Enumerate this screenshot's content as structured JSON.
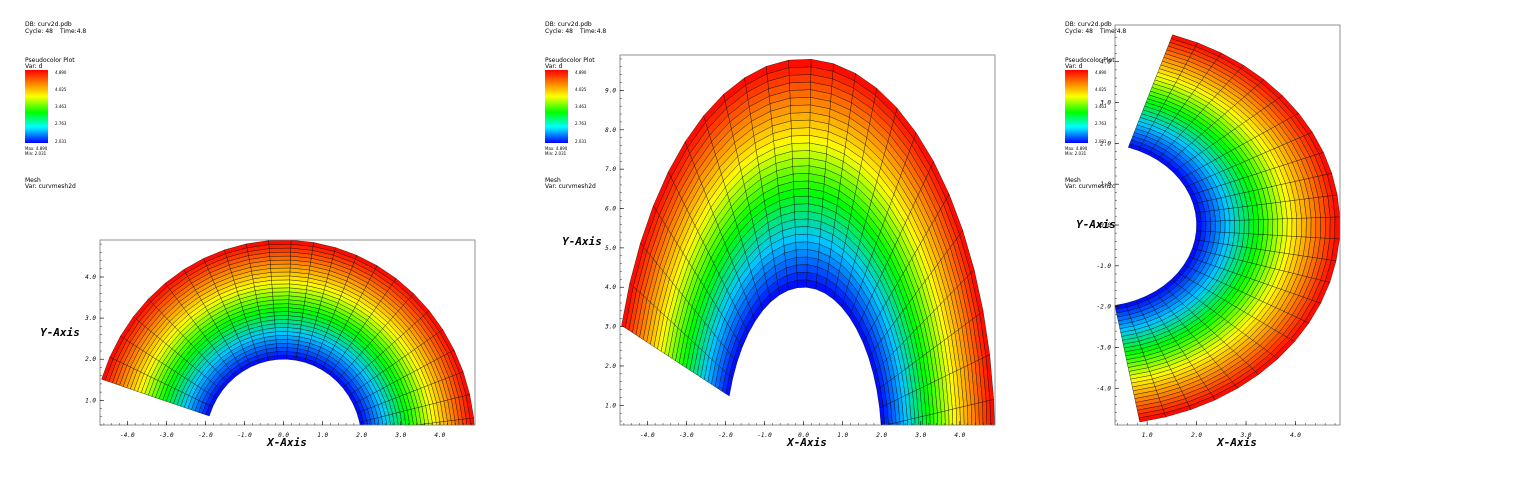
{
  "header": {
    "db": "DB: curv2d.pdb",
    "cycle": "Cycle: 48",
    "time": "Time:4.8"
  },
  "legend": {
    "plot_title": "Pseudocolor Plot",
    "var_label": "Var:  d",
    "ticks": [
      "4.890",
      "4.025",
      "3.463",
      "2.763",
      "2.031"
    ],
    "max_text": "Max: 4.890",
    "min_text": "Min: 2.031",
    "mesh_title": "Mesh",
    "mesh_var": "Var: curvmesh2d",
    "colors": [
      "#ff0000",
      "#ff8000",
      "#ffff00",
      "#00ff00",
      "#00ffff",
      "#0000ff"
    ]
  },
  "chart_data": [
    {
      "type": "heatmap",
      "description_of_field": "pseudocolor of var d on curvilinear annulus mesh",
      "xlabel": "X-Axis",
      "ylabel": "Y-Axis",
      "xlim": [
        -4.7,
        4.9
      ],
      "ylim": [
        0.4,
        4.9
      ],
      "xticks": [
        "-4.0",
        "-3.0",
        "-2.0",
        "-1.0",
        "0.0",
        "1.0",
        "2.0",
        "3.0",
        "4.0"
      ],
      "yticks": [
        "1.0",
        "2.0",
        "3.0",
        "4.0"
      ],
      "inner_radius": 2.0,
      "outer_radius": 4.9,
      "theta_range_deg": [
        0,
        162
      ],
      "y_scale": 1.0,
      "value_range": [
        2.031,
        4.89
      ]
    },
    {
      "type": "heatmap",
      "description_of_field": "pseudocolor of var d on curvilinear annulus mesh",
      "xlabel": "X-Axis",
      "ylabel": "Y-Axis",
      "xlim": [
        -4.7,
        4.9
      ],
      "ylim": [
        0.5,
        9.9
      ],
      "xticks": [
        "-4.0",
        "-3.0",
        "-2.0",
        "-1.0",
        "0.0",
        "1.0",
        "2.0",
        "3.0",
        "4.0"
      ],
      "yticks": [
        "1.0",
        "2.0",
        "3.0",
        "4.0",
        "5.0",
        "6.0",
        "7.0",
        "8.0",
        "9.0"
      ],
      "inner_radius": 2.0,
      "outer_radius": 4.9,
      "theta_range_deg": [
        0,
        162
      ],
      "y_scale": 2.0,
      "value_range": [
        2.031,
        4.89
      ]
    },
    {
      "type": "heatmap",
      "description_of_field": "pseudocolor of var d on curvilinear annulus mesh",
      "xlabel": "X-Axis",
      "ylabel": "Y-Axis",
      "xlim": [
        0.35,
        4.9
      ],
      "ylim": [
        -4.9,
        4.9
      ],
      "xticks": [
        "1.0",
        "2.0",
        "3.0",
        "4.0"
      ],
      "yticks": [
        "-4.0",
        "-3.0",
        "-2.0",
        "-1.0",
        "0.0",
        "1.0",
        "2.0",
        "3.0",
        "4.0"
      ],
      "inner_radius": 2.0,
      "outer_radius": 4.9,
      "theta_range_deg": [
        -80,
        72
      ],
      "y_scale": 1.0,
      "value_range": [
        2.031,
        4.89
      ]
    }
  ]
}
